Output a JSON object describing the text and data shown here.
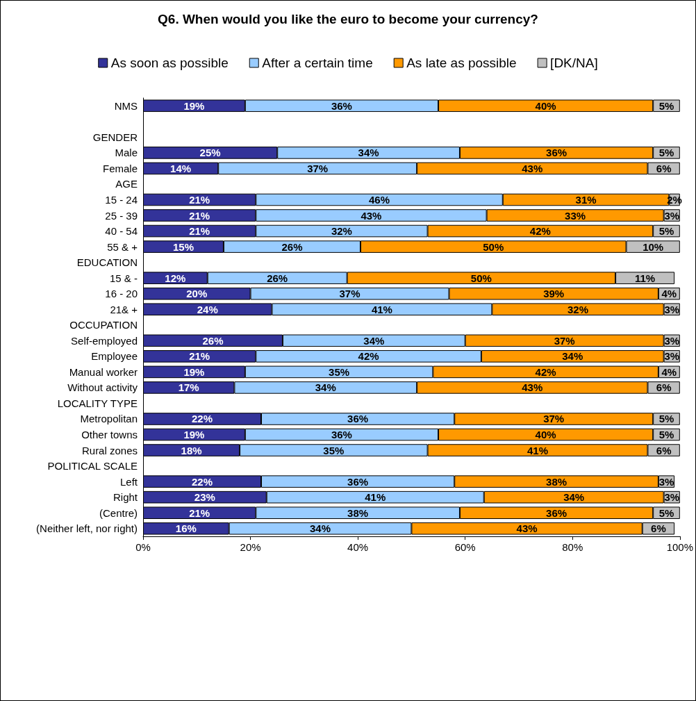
{
  "chart_data": {
    "type": "bar",
    "title": "Q6. When would you like the euro to become your currency?",
    "orientation": "horizontal",
    "stacked": true,
    "legend": "top",
    "grid": false,
    "categories": [
      "NMS",
      null,
      "GENDER",
      "Male",
      "Female",
      "AGE",
      "15 - 24",
      "25 - 39",
      "40 - 54",
      "55 & +",
      "EDUCATION",
      "15 & -",
      "16 - 20",
      "21& +",
      "OCCUPATION",
      "Self-employed",
      "Employee",
      "Manual worker",
      "Without activity",
      "LOCALITY TYPE",
      "Metropolitan",
      "Other towns",
      "Rural zones",
      "POLITICAL SCALE",
      "Left",
      "Right",
      "(Centre)",
      "(Neither left, nor right)"
    ],
    "xlim": [
      0,
      100
    ],
    "xticks": [
      {
        "value": 0,
        "label": "0%"
      },
      {
        "value": 20,
        "label": "20%"
      },
      {
        "value": 40,
        "label": "40%"
      },
      {
        "value": 60,
        "label": "60%"
      },
      {
        "value": 80,
        "label": "80%"
      },
      {
        "value": 100,
        "label": "100%"
      }
    ],
    "series": [
      {
        "name": "As soon as possible",
        "color": "#333399",
        "values": [
          19,
          null,
          null,
          25,
          14,
          null,
          21,
          21,
          21,
          15,
          null,
          12,
          20,
          24,
          null,
          26,
          21,
          19,
          17,
          null,
          22,
          19,
          18,
          null,
          22,
          23,
          21,
          16
        ],
        "value_labels": [
          "19%",
          null,
          null,
          "25%",
          "14%",
          null,
          "21%",
          "21%",
          "21%",
          "15%",
          null,
          "12%",
          "20%",
          "24%",
          null,
          "26%",
          "21%",
          "19%",
          "17%",
          null,
          "22%",
          "19%",
          "18%",
          null,
          "22%",
          "23%",
          "21%",
          "16%"
        ]
      },
      {
        "name": "After a certain time",
        "color": "#99ccff",
        "values": [
          36,
          null,
          null,
          34,
          37,
          null,
          46,
          43,
          32,
          25.5,
          null,
          26,
          37,
          41,
          null,
          34,
          42,
          35,
          34,
          null,
          36,
          36,
          35,
          null,
          36,
          40.5,
          38,
          34
        ],
        "value_labels": [
          "36%",
          null,
          null,
          "34%",
          "37%",
          null,
          "46%",
          "43%",
          "32%",
          "26%",
          null,
          "26%",
          "37%",
          "41%",
          null,
          "34%",
          "42%",
          "35%",
          "34%",
          null,
          "36%",
          "36%",
          "35%",
          null,
          "36%",
          "41%",
          "38%",
          "34%"
        ]
      },
      {
        "name": "As late as possible",
        "color": "#ff9900",
        "values": [
          40,
          null,
          null,
          36,
          43,
          null,
          31,
          33,
          42,
          49.5,
          null,
          50,
          39,
          32,
          null,
          37,
          34,
          42,
          43,
          null,
          37,
          40,
          41,
          null,
          38,
          33.5,
          36,
          43
        ],
        "value_labels": [
          "40%",
          null,
          null,
          "36%",
          "43%",
          null,
          "31%",
          "33%",
          "42%",
          "50%",
          null,
          "50%",
          "39%",
          "32%",
          null,
          "37%",
          "34%",
          "42%",
          "43%",
          null,
          "37%",
          "40%",
          "41%",
          null,
          "38%",
          "34%",
          "36%",
          "43%"
        ]
      },
      {
        "name": "[DK/NA]",
        "color": "#c0c0c0",
        "values": [
          5,
          null,
          null,
          5,
          6,
          null,
          2,
          3,
          5,
          10,
          null,
          11,
          4,
          3,
          null,
          3,
          3,
          4,
          6,
          null,
          5,
          5,
          6,
          null,
          3,
          3,
          5,
          6
        ],
        "value_labels": [
          "5%",
          null,
          null,
          "5%",
          "6%",
          null,
          "2%",
          "3%",
          "5%",
          "10%",
          null,
          "11%",
          "4%",
          "3%",
          null,
          "3%",
          "3%",
          "4%",
          "6%",
          null,
          "5%",
          "5%",
          "6%",
          null,
          "3%",
          "3%",
          "5%",
          "6%"
        ]
      }
    ]
  }
}
